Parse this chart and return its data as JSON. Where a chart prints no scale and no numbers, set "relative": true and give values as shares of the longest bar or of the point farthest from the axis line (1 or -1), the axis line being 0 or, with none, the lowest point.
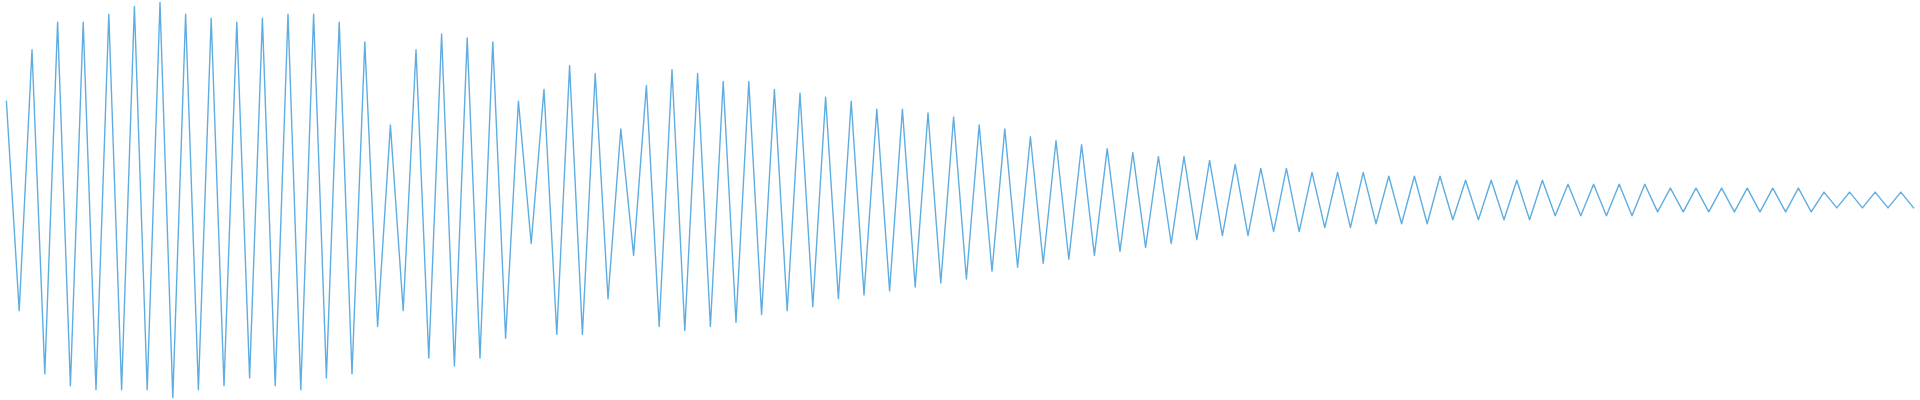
{
  "chart_data": {
    "type": "line",
    "relative": true,
    "categories": [
      null,
      null,
      null,
      null,
      null,
      null,
      null,
      null,
      null,
      null,
      null,
      null,
      null,
      null,
      null,
      null,
      null,
      null,
      null,
      null,
      null,
      null,
      null,
      null,
      null,
      null,
      null,
      null,
      null,
      null,
      null,
      null,
      null,
      null,
      null,
      null,
      null,
      null,
      null,
      null,
      null,
      null,
      null,
      null,
      null,
      null,
      null,
      null,
      null,
      null,
      null,
      null,
      null,
      null,
      null,
      null,
      null,
      null,
      null,
      null,
      null,
      null,
      null,
      null,
      null,
      null,
      null,
      null,
      null,
      null,
      null,
      null,
      null,
      null,
      null,
      null,
      null,
      null,
      null,
      null,
      null,
      null,
      null,
      null,
      null,
      null,
      null,
      null,
      null,
      null,
      null,
      null,
      null,
      null,
      null,
      null,
      null,
      null,
      null,
      null,
      null,
      null,
      null,
      null,
      null,
      null,
      null,
      null,
      null,
      null,
      null,
      null,
      null,
      null,
      null,
      null,
      null,
      null,
      null,
      null,
      null,
      null,
      null,
      null,
      null,
      null,
      null,
      null,
      null,
      null,
      null,
      null,
      null,
      null,
      null,
      null,
      null,
      null,
      null,
      null,
      null,
      null,
      null,
      null,
      null,
      null,
      null,
      null,
      null,
      null
    ],
    "series": [
      {
        "color": "#5dade2",
        "values": [
          0.75,
          0.22,
          0.88,
          0.06,
          0.95,
          0.03,
          0.95,
          0.02,
          0.97,
          0.02,
          0.99,
          0.02,
          1.0,
          0.0,
          0.97,
          0.02,
          0.96,
          0.03,
          0.95,
          0.05,
          0.96,
          0.03,
          0.97,
          0.02,
          0.97,
          0.05,
          0.95,
          0.06,
          0.9,
          0.18,
          0.69,
          0.22,
          0.88,
          0.1,
          0.92,
          0.08,
          0.91,
          0.1,
          0.9,
          0.15,
          0.75,
          0.39,
          0.78,
          0.16,
          0.84,
          0.16,
          0.82,
          0.25,
          0.68,
          0.36,
          0.79,
          0.18,
          0.83,
          0.17,
          0.82,
          0.18,
          0.8,
          0.19,
          0.8,
          0.21,
          0.78,
          0.22,
          0.77,
          0.23,
          0.76,
          0.25,
          0.75,
          0.26,
          0.73,
          0.27,
          0.73,
          0.28,
          0.72,
          0.29,
          0.71,
          0.3,
          0.69,
          0.32,
          0.68,
          0.33,
          0.66,
          0.34,
          0.65,
          0.35,
          0.64,
          0.36,
          0.63,
          0.37,
          0.62,
          0.38,
          0.61,
          0.39,
          0.61,
          0.4,
          0.6,
          0.41,
          0.59,
          0.41,
          0.58,
          0.42,
          0.58,
          0.42,
          0.57,
          0.43,
          0.57,
          0.43,
          0.57,
          0.44,
          0.56,
          0.44,
          0.56,
          0.44,
          0.56,
          0.45,
          0.55,
          0.45,
          0.55,
          0.45,
          0.55,
          0.45,
          0.55,
          0.46,
          0.54,
          0.46,
          0.54,
          0.46,
          0.54,
          0.46,
          0.54,
          0.47,
          0.53,
          0.47,
          0.53,
          0.47,
          0.53,
          0.47,
          0.53,
          0.47,
          0.53,
          0.47,
          0.53,
          0.47,
          0.52,
          0.48,
          0.52,
          0.48,
          0.52,
          0.48,
          0.52,
          0.48
        ]
      }
    ]
  }
}
